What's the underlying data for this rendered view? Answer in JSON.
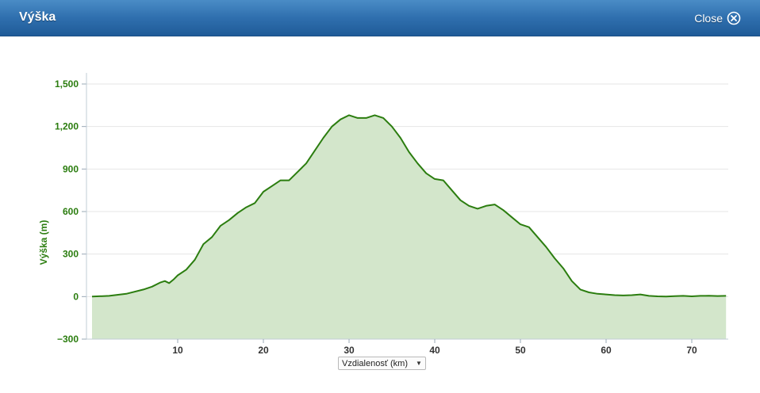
{
  "window": {
    "title": "Výška",
    "close_label": "Close",
    "close_icon": "close-circle-icon"
  },
  "colors": {
    "header": "#2f6fae",
    "line": "#2b7d0f",
    "fill": "#d3e6cb",
    "axis_text": "#2b7d0f"
  },
  "x_unit_select": {
    "selected": "Vzdialenosť (km)"
  },
  "chart_data": {
    "type": "area",
    "title": "",
    "xlabel": "",
    "ylabel": "Výška (m)",
    "xlim": [
      0,
      74
    ],
    "ylim": [
      -300,
      1500
    ],
    "yticks": [
      -300,
      0,
      300,
      600,
      900,
      1200,
      1500
    ],
    "ytick_labels": [
      "−300",
      "0",
      "300",
      "600",
      "900",
      "1,200",
      "1,500"
    ],
    "xticks": [
      10,
      20,
      30,
      40,
      50,
      60,
      70
    ],
    "xtick_labels": [
      "10",
      "20",
      "30",
      "40",
      "50",
      "60",
      "70"
    ],
    "grid": true,
    "series": [
      {
        "x": [
          0,
          2,
          4,
          6,
          7,
          8,
          8.5,
          9,
          9.5,
          10,
          11,
          12,
          13,
          14,
          15,
          16,
          17,
          18,
          19,
          20,
          21,
          22,
          23,
          24,
          25,
          26,
          27,
          28,
          29,
          30,
          31,
          32,
          33,
          34,
          35,
          36,
          37,
          38,
          39,
          40,
          41,
          42,
          43,
          44,
          45,
          46,
          47,
          48,
          49,
          50,
          51,
          52,
          53,
          54,
          55,
          56,
          57,
          58,
          59,
          60,
          61,
          62,
          63,
          64,
          65,
          66,
          67,
          68,
          69,
          70,
          71,
          72,
          73,
          74
        ],
        "y": [
          0,
          5,
          20,
          50,
          70,
          100,
          110,
          95,
          120,
          150,
          190,
          260,
          370,
          420,
          500,
          540,
          590,
          630,
          660,
          740,
          780,
          820,
          820,
          880,
          940,
          1030,
          1120,
          1200,
          1250,
          1280,
          1260,
          1260,
          1280,
          1260,
          1200,
          1120,
          1020,
          940,
          870,
          830,
          820,
          750,
          680,
          640,
          620,
          640,
          650,
          610,
          560,
          510,
          490,
          420,
          350,
          270,
          200,
          110,
          50,
          30,
          20,
          15,
          10,
          8,
          10,
          15,
          5,
          2,
          0,
          3,
          5,
          2,
          5,
          6,
          4,
          5
        ]
      }
    ]
  }
}
